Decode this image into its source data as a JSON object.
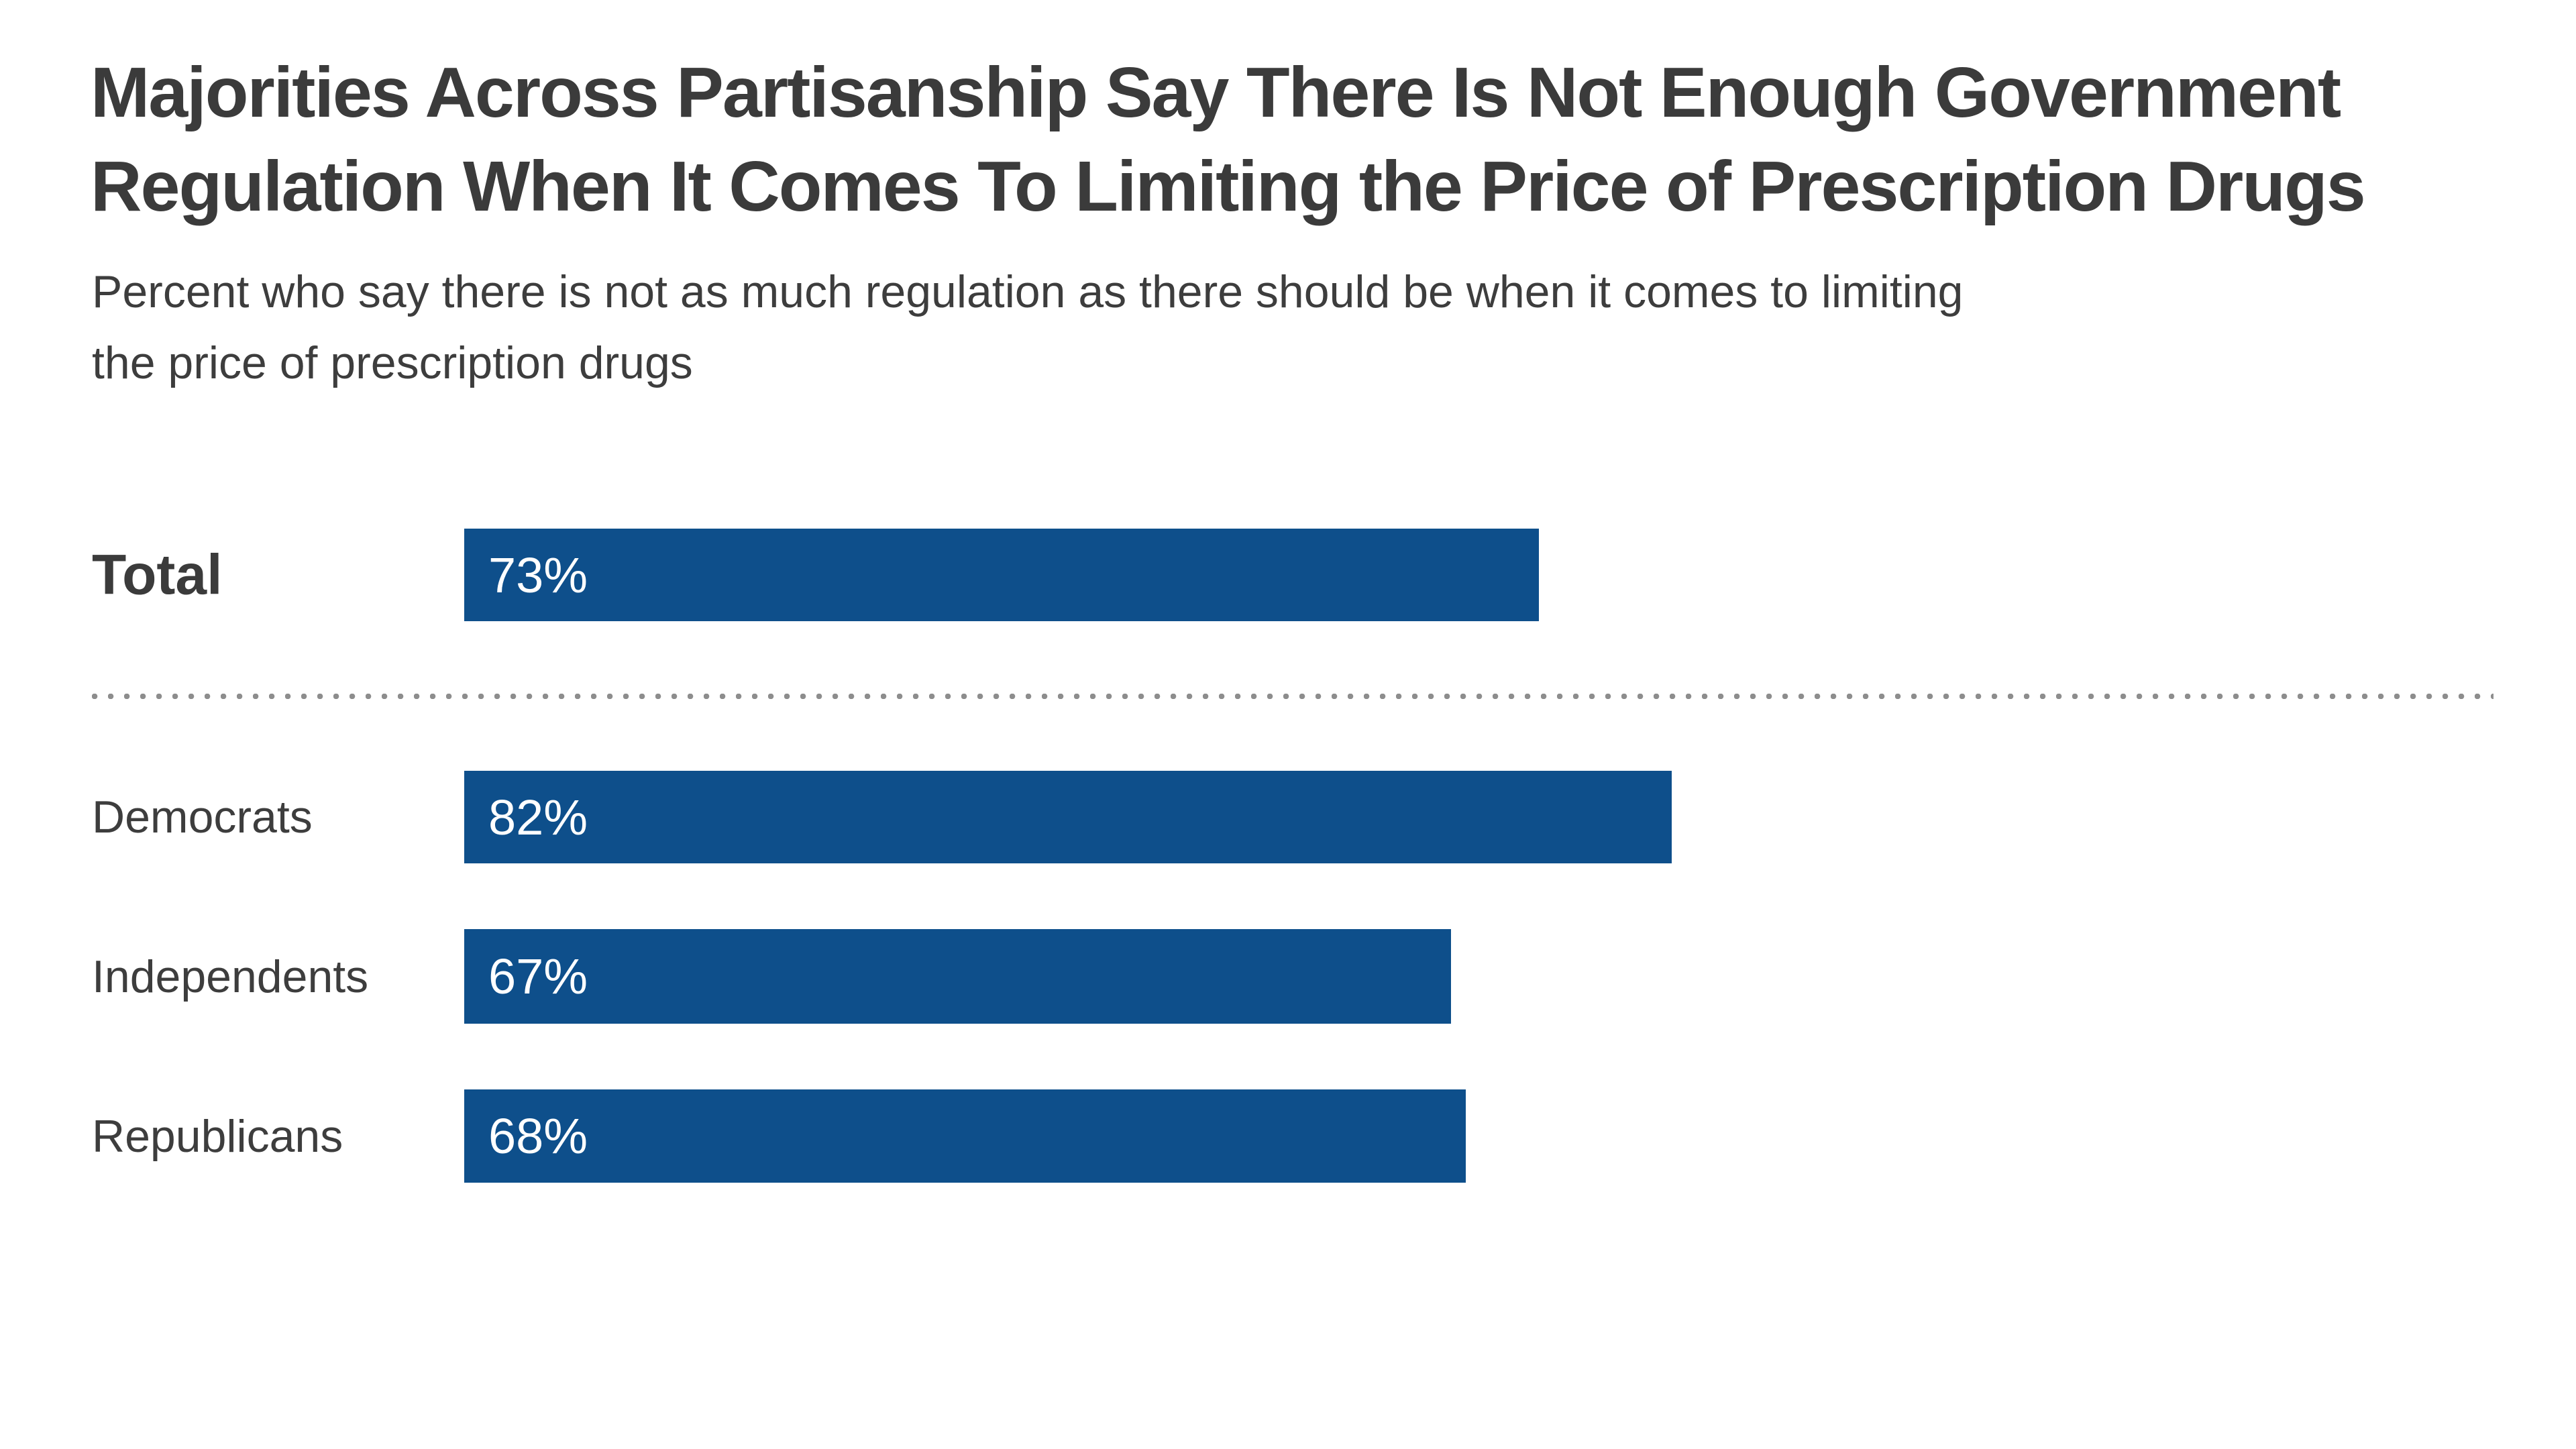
{
  "chart_data": {
    "type": "bar",
    "orientation": "horizontal",
    "title": "Majorities Across Partisanship Say There Is Not Enough Government Regulation When It Comes To Limiting the Price of Prescription Drugs",
    "title_lines": [
      "Majorities Across Partisanship Say There Is Not Enough Government",
      "Regulation When It Comes To Limiting the Price of Prescription Drugs"
    ],
    "subtitle": "Percent who say there is not as much regulation as there should be when it comes to limiting the price of prescription drugs",
    "subtitle_lines": [
      "Percent who say there is not as much regulation as there should be when it comes to limiting",
      "the price of prescription drugs"
    ],
    "categories": [
      "Total",
      "Democrats",
      "Independents",
      "Republicans"
    ],
    "values": [
      73,
      82,
      67,
      68
    ],
    "unit": "percent",
    "xlim": [
      0,
      100
    ],
    "grid": false,
    "legend": false,
    "axis_labels_visible": false,
    "bar_color": "#0e4f8b",
    "value_label_color": "#ffffff",
    "category_label_color": "#3d3d3d",
    "separator_style": "gray dotted line between Total row and party rows",
    "rows": [
      {
        "label": "Total",
        "value": 73,
        "display": "73%",
        "emphasis": true
      },
      {
        "label": "Democrats",
        "value": 82,
        "display": "82%",
        "emphasis": false
      },
      {
        "label": "Independents",
        "value": 67,
        "display": "67%",
        "emphasis": false
      },
      {
        "label": "Republicans",
        "value": 68,
        "display": "68%",
        "emphasis": false
      }
    ]
  }
}
